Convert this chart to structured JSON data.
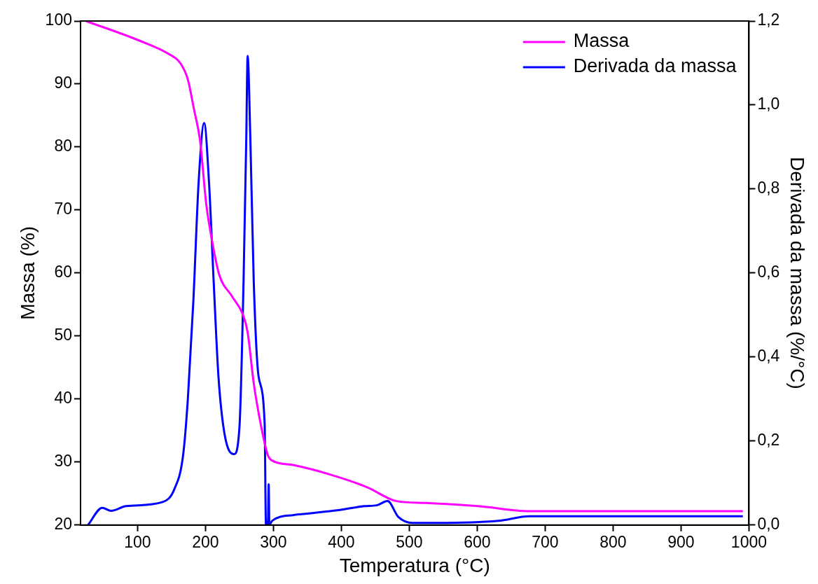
{
  "chart_data": {
    "type": "line",
    "xlabel": "Temperatura (°C)",
    "ylabel": "Massa (%)",
    "y2label": "Derivada da massa (%/°C)",
    "xlim": [
      16,
      1000
    ],
    "xticks": [
      100,
      200,
      300,
      400,
      500,
      600,
      700,
      800,
      900,
      1000
    ],
    "ylim": [
      20,
      100
    ],
    "yticks": [
      20,
      30,
      40,
      50,
      60,
      70,
      80,
      90,
      100
    ],
    "y2lim": [
      0,
      1.2
    ],
    "y2ticks": [
      {
        "value": 0,
        "label": "0,0"
      },
      {
        "value": 0.2,
        "label": "0,2"
      },
      {
        "value": 0.4,
        "label": "0,4"
      },
      {
        "value": 0.6,
        "label": "0,6"
      },
      {
        "value": 0.8,
        "label": "0,8"
      },
      {
        "value": 1,
        "label": "1,0"
      },
      {
        "value": 1.2,
        "label": "1,2"
      }
    ],
    "legend": "top right",
    "grid": false,
    "marker": "none",
    "line_style": "solid",
    "series": [
      {
        "name": "Massa",
        "color": "#ff00ff",
        "x": [
          24,
          100,
          147,
          163,
          174,
          183,
          192,
          201,
          209,
          220,
          239,
          255,
          262,
          271,
          282,
          292,
          297,
          330,
          384,
          438,
          481,
          524,
          601,
          677,
          991
        ],
        "values": [
          100,
          97,
          94.7,
          93.3,
          90.7,
          86,
          81,
          71,
          65.5,
          59.8,
          56.3,
          53.4,
          50.6,
          42.5,
          35.6,
          31,
          30.3,
          29.5,
          28,
          26,
          23.8,
          23.5,
          23,
          22.2,
          22.2
        ]
      },
      {
        "name": "Derivada da massa",
        "color": "#0000ff",
        "axis": "y2",
        "x": [
          27,
          48,
          61,
          83,
          137,
          154,
          167,
          174,
          182,
          190,
          198,
          205,
          212,
          219,
          228,
          242,
          250,
          256,
          260,
          262,
          266,
          271,
          278,
          287,
          289,
          292,
          293,
          294,
          298,
          330,
          341,
          398,
          434,
          452,
          468,
          484,
          505,
          542,
          631,
          677,
          991
        ],
        "values": [
          0,
          0.041,
          0.034,
          0.045,
          0.055,
          0.085,
          0.166,
          0.3,
          0.53,
          0.82,
          0.957,
          0.82,
          0.58,
          0.355,
          0.217,
          0.169,
          0.234,
          0.58,
          0.92,
          1.117,
          0.92,
          0.58,
          0.355,
          0.243,
          0,
          0.01,
          0.097,
          0,
          0.01,
          0.024,
          0.026,
          0.036,
          0.045,
          0.047,
          0.057,
          0.019,
          0.005,
          0.005,
          0.01,
          0.021,
          0.021
        ]
      }
    ]
  }
}
